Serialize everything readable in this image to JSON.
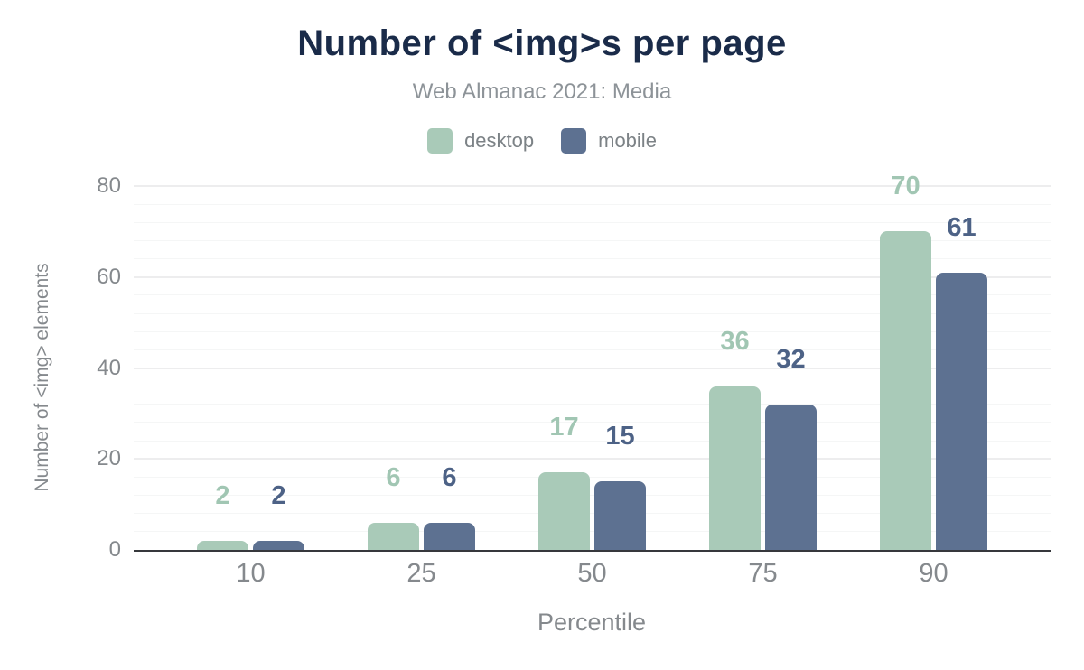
{
  "chart": {
    "title": "Number of <img>s per page",
    "subtitle": "Web Almanac 2021: Media",
    "ylabel": "Number of <img> elements",
    "xlabel": "Percentile"
  },
  "chart_data": {
    "type": "bar",
    "title": "Number of <img>s per page",
    "subtitle": "Web Almanac 2021: Media",
    "categories": [
      "10",
      "25",
      "50",
      "75",
      "90"
    ],
    "series": [
      {
        "name": "desktop",
        "color": "#a9cab8",
        "label_color": "#a1c6b3",
        "values": [
          2,
          6,
          17,
          36,
          70
        ]
      },
      {
        "name": "mobile",
        "color": "#5d7191",
        "label_color": "#4d6286",
        "values": [
          2,
          6,
          15,
          32,
          61
        ]
      }
    ],
    "xlabel": "Percentile",
    "ylabel": "Number of <img> elements",
    "ylim": [
      0,
      80
    ],
    "yticks": [
      0,
      20,
      40,
      60,
      80
    ],
    "minor_grid_step": 4,
    "grid": true,
    "legend_position": "top",
    "bar_labels_shown": true
  },
  "colors": {
    "title": "#1a2b49",
    "subtitle": "#8d9398",
    "axis_text": "#85898d",
    "legend_text": "#7c8286",
    "axis_line": "#36383c",
    "grid_major": "#ededee",
    "grid_minor": "#f5f6f6",
    "background": "#ffffff"
  }
}
